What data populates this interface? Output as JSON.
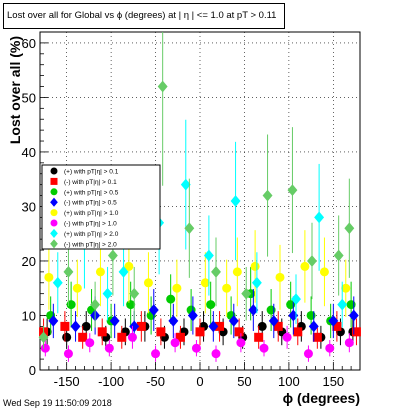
{
  "chart_data": {
    "type": "scatter",
    "title": "Lost over all for  Global vs ϕ (degrees) at |   η | <= 1.0 at pT > 0.11",
    "xlabel": "ϕ (degrees)",
    "ylabel": "Lost over all (%)",
    "xlim": [
      -180,
      180
    ],
    "ylim": [
      0,
      62
    ],
    "xticks": [
      -150,
      -100,
      -50,
      0,
      50,
      100,
      150
    ],
    "yticks": [
      0,
      10,
      20,
      30,
      40,
      50,
      60
    ],
    "grid": true,
    "legend_placement": "middle-left",
    "series": [
      {
        "name": "(+) with pT|η| > 0.1",
        "color": "#000000",
        "marker": "circle",
        "x": [
          -172,
          -150,
          -128,
          -106,
          -84,
          -62,
          -40,
          -18,
          4,
          26,
          48,
          70,
          92,
          114,
          136,
          158,
          172
        ],
        "y": [
          7,
          6,
          8,
          6,
          7,
          8,
          6,
          7,
          8,
          7,
          6,
          8,
          7,
          8,
          6,
          7,
          7
        ]
      },
      {
        "name": "(-) with pT|η| > 0.1",
        "color": "#ff0000",
        "marker": "square",
        "x": [
          -176,
          -152,
          -132,
          -110,
          -88,
          -66,
          -44,
          -22,
          0,
          22,
          44,
          66,
          88,
          110,
          132,
          154,
          176
        ],
        "y": [
          7,
          8,
          6,
          7,
          6,
          8,
          7,
          6,
          7,
          8,
          7,
          6,
          8,
          7,
          6,
          8,
          7
        ]
      },
      {
        "name": "(+) with pT|η| > 0.5",
        "color": "#00cc00",
        "marker": "circle",
        "x": [
          -168,
          -145,
          -122,
          -100,
          -78,
          -55,
          -33,
          -10,
          12,
          35,
          57,
          80,
          102,
          125,
          147,
          170
        ],
        "y": [
          10,
          12,
          11,
          9,
          12,
          10,
          13,
          11,
          12,
          10,
          14,
          11,
          12,
          10,
          9,
          12
        ]
      },
      {
        "name": "(-) with pT|η| > 0.5",
        "color": "#0000ff",
        "marker": "diamond",
        "x": [
          -165,
          -140,
          -118,
          -96,
          -74,
          -52,
          -30,
          -8,
          15,
          38,
          60,
          83,
          105,
          128,
          150,
          173
        ],
        "y": [
          9,
          8,
          10,
          9,
          8,
          11,
          9,
          10,
          8,
          9,
          11,
          9,
          10,
          8,
          9,
          10
        ]
      },
      {
        "name": "(+) with pT|η| > 1.0",
        "color": "#ffff00",
        "marker": "circle",
        "x": [
          -170,
          -138,
          -112,
          -80,
          -58,
          -26,
          6,
          30,
          42,
          62,
          90,
          118,
          140,
          164
        ],
        "y": [
          17,
          15,
          18,
          19,
          16,
          15,
          16,
          15,
          18,
          19,
          17,
          19,
          18,
          15
        ]
      },
      {
        "name": "(-) with pT|η| > 1.0",
        "color": "#ff00ff",
        "marker": "circle",
        "x": [
          -174,
          -148,
          -124,
          -102,
          -76,
          -50,
          -28,
          -4,
          18,
          46,
          72,
          98,
          122,
          146,
          168
        ],
        "y": [
          4,
          3,
          5,
          4,
          6,
          3,
          5,
          4,
          3,
          5,
          4,
          6,
          3,
          4,
          5
        ]
      },
      {
        "name": "(+) with pT|η| > 2.0",
        "color": "#00ffff",
        "marker": "diamond",
        "x": [
          -160,
          -130,
          -104,
          -86,
          -46,
          -16,
          10,
          40,
          64,
          108,
          134,
          160
        ],
        "y": [
          16,
          23,
          14,
          18,
          27,
          34,
          21,
          31,
          16,
          13,
          28,
          12
        ]
      },
      {
        "name": "(-) with pT|η| > 2.0",
        "color": "#66cc66",
        "marker": "diamond",
        "x": [
          -176,
          -148,
          -118,
          -98,
          -74,
          -42,
          -12,
          18,
          52,
          76,
          104,
          126,
          156,
          168
        ],
        "y": [
          6,
          18,
          12,
          21,
          14,
          52,
          26,
          18,
          14,
          32,
          33,
          20,
          21,
          26
        ]
      }
    ]
  },
  "footer": {
    "timestamp": "Wed Sep 19 11:50:09 2018"
  }
}
